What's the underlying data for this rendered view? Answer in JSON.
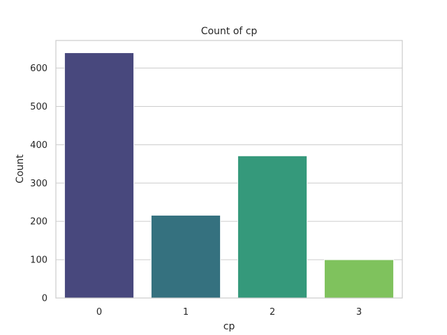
{
  "chart_data": {
    "type": "bar",
    "title": "Count of cp",
    "xlabel": "cp",
    "ylabel": "Count",
    "categories": [
      "0",
      "1",
      "2",
      "3"
    ],
    "values": [
      640,
      216,
      371,
      100
    ],
    "ylim": [
      0,
      672
    ],
    "yticks": [
      0,
      100,
      200,
      300,
      400,
      500,
      600
    ],
    "grid": "horizontal",
    "colors": [
      "#48487d",
      "#35717f",
      "#35997b",
      "#7fc25d"
    ]
  }
}
